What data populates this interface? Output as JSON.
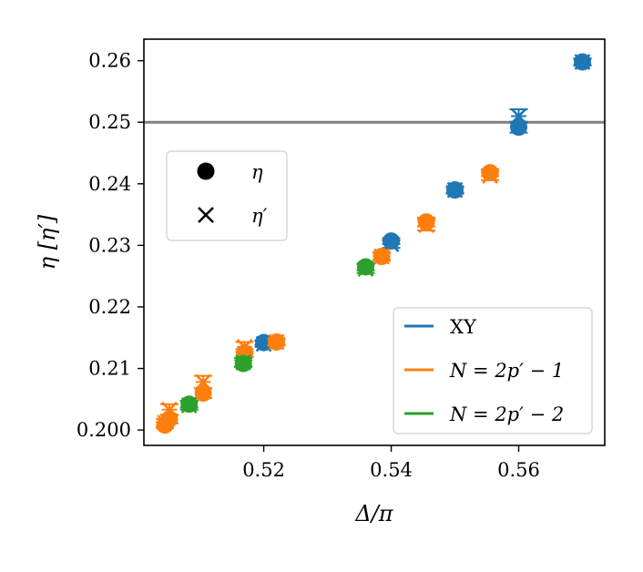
{
  "chart_data": {
    "type": "scatter",
    "xlabel": "Δ/π",
    "ylabel": "η [η′]",
    "xlim": [
      0.5012,
      0.5735
    ],
    "ylim": [
      0.1975,
      0.2635
    ],
    "x_ticks": [
      0.52,
      0.54,
      0.56
    ],
    "x_tick_labels": [
      "0.52",
      "0.54",
      "0.56"
    ],
    "y_ticks": [
      0.2,
      0.21,
      0.22,
      0.23,
      0.24,
      0.25,
      0.26
    ],
    "y_tick_labels": [
      "0.200",
      "0.21",
      "0.22",
      "0.23",
      "0.24",
      "0.25",
      "0.26"
    ],
    "reference_line": {
      "y": 0.25,
      "color": "#808080"
    },
    "grid": false,
    "marker_legend": {
      "placement": "upper-left",
      "entries": [
        {
          "marker": "circle",
          "label": "η"
        },
        {
          "marker": "cross",
          "label": "η′"
        }
      ]
    },
    "series_legend": {
      "placement": "lower-right",
      "entries": [
        "XY",
        "N = 2p′ − 1",
        "N = 2p′ − 2"
      ]
    },
    "series": [
      {
        "name": "XY",
        "color": "#1f77b4",
        "points": [
          {
            "x": 0.52,
            "eta": 0.2142,
            "eta_prime": 0.214,
            "err": 0.0005
          },
          {
            "x": 0.54,
            "eta": 0.2307,
            "eta_prime": 0.2302,
            "err": 0.0006
          },
          {
            "x": 0.55,
            "eta": 0.239,
            "eta_prime": 0.239,
            "err": 0.0006
          },
          {
            "x": 0.56,
            "eta": 0.2492,
            "eta_prime": 0.251,
            "err": 0.0011
          },
          {
            "x": 0.57,
            "eta": 0.2598,
            "eta_prime": 0.2598,
            "err": 0.0006
          }
        ]
      },
      {
        "name": "N = 2p′ − 1",
        "color": "#ff7f0e",
        "points": [
          {
            "x": 0.5045,
            "eta": 0.2008,
            "eta_prime": 0.2012,
            "err": 0.0006
          },
          {
            "x": 0.5052,
            "eta": 0.2018,
            "eta_prime": 0.2033,
            "err": 0.0009
          },
          {
            "x": 0.5105,
            "eta": 0.206,
            "eta_prime": 0.2078,
            "err": 0.001
          },
          {
            "x": 0.517,
            "eta": 0.2125,
            "eta_prime": 0.2135,
            "err": 0.0008
          },
          {
            "x": 0.522,
            "eta": 0.2143,
            "eta_prime": 0.2143,
            "err": 0.0006
          },
          {
            "x": 0.5385,
            "eta": 0.2282,
            "eta_prime": 0.2282,
            "err": 0.0007
          },
          {
            "x": 0.5455,
            "eta": 0.2338,
            "eta_prime": 0.2333,
            "err": 0.0009
          },
          {
            "x": 0.5555,
            "eta": 0.2418,
            "eta_prime": 0.2413,
            "err": 0.0007
          }
        ]
      },
      {
        "name": "N = 2p′ − 2",
        "color": "#2ca02c",
        "points": [
          {
            "x": 0.5083,
            "eta": 0.2042,
            "eta_prime": 0.204,
            "err": 0.0007
          },
          {
            "x": 0.5168,
            "eta": 0.2108,
            "eta_prime": 0.211,
            "err": 0.0007
          },
          {
            "x": 0.536,
            "eta": 0.2265,
            "eta_prime": 0.2262,
            "err": 0.0007
          }
        ]
      }
    ]
  }
}
